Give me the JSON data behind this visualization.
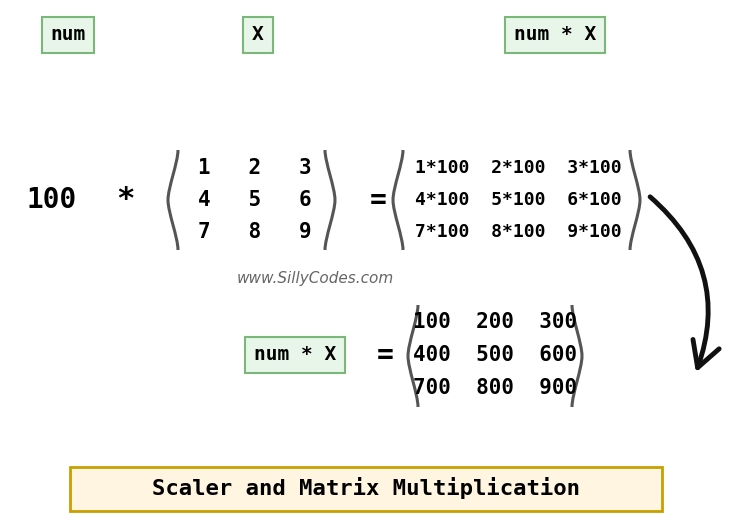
{
  "bg_color": "#ffffff",
  "title_text": "Scaler and Matrix Multiplication",
  "title_box_color": "#fff5e0",
  "title_border_color": "#c8a000",
  "label_box_color": "#e8f5e9",
  "label_border_color": "#7ab87a",
  "num_label": "num",
  "x_label": "X",
  "numx_label": "num * X",
  "scalar_value": "100",
  "multiply_sign": "*",
  "equals_sign": "=",
  "matrix_input": [
    "1   2   3",
    "4   5   6",
    "7   8   9"
  ],
  "matrix_formula": [
    "1*100  2*100  3*100",
    "4*100  5*100  6*100",
    "7*100  8*100  9*100"
  ],
  "matrix_result": [
    "100  200  300",
    "400  500  600",
    "700  800  900"
  ],
  "watermark": "www.SillyCodes.com",
  "bracket_color": "#555555",
  "text_color": "#000000",
  "arrow_color": "#111111"
}
